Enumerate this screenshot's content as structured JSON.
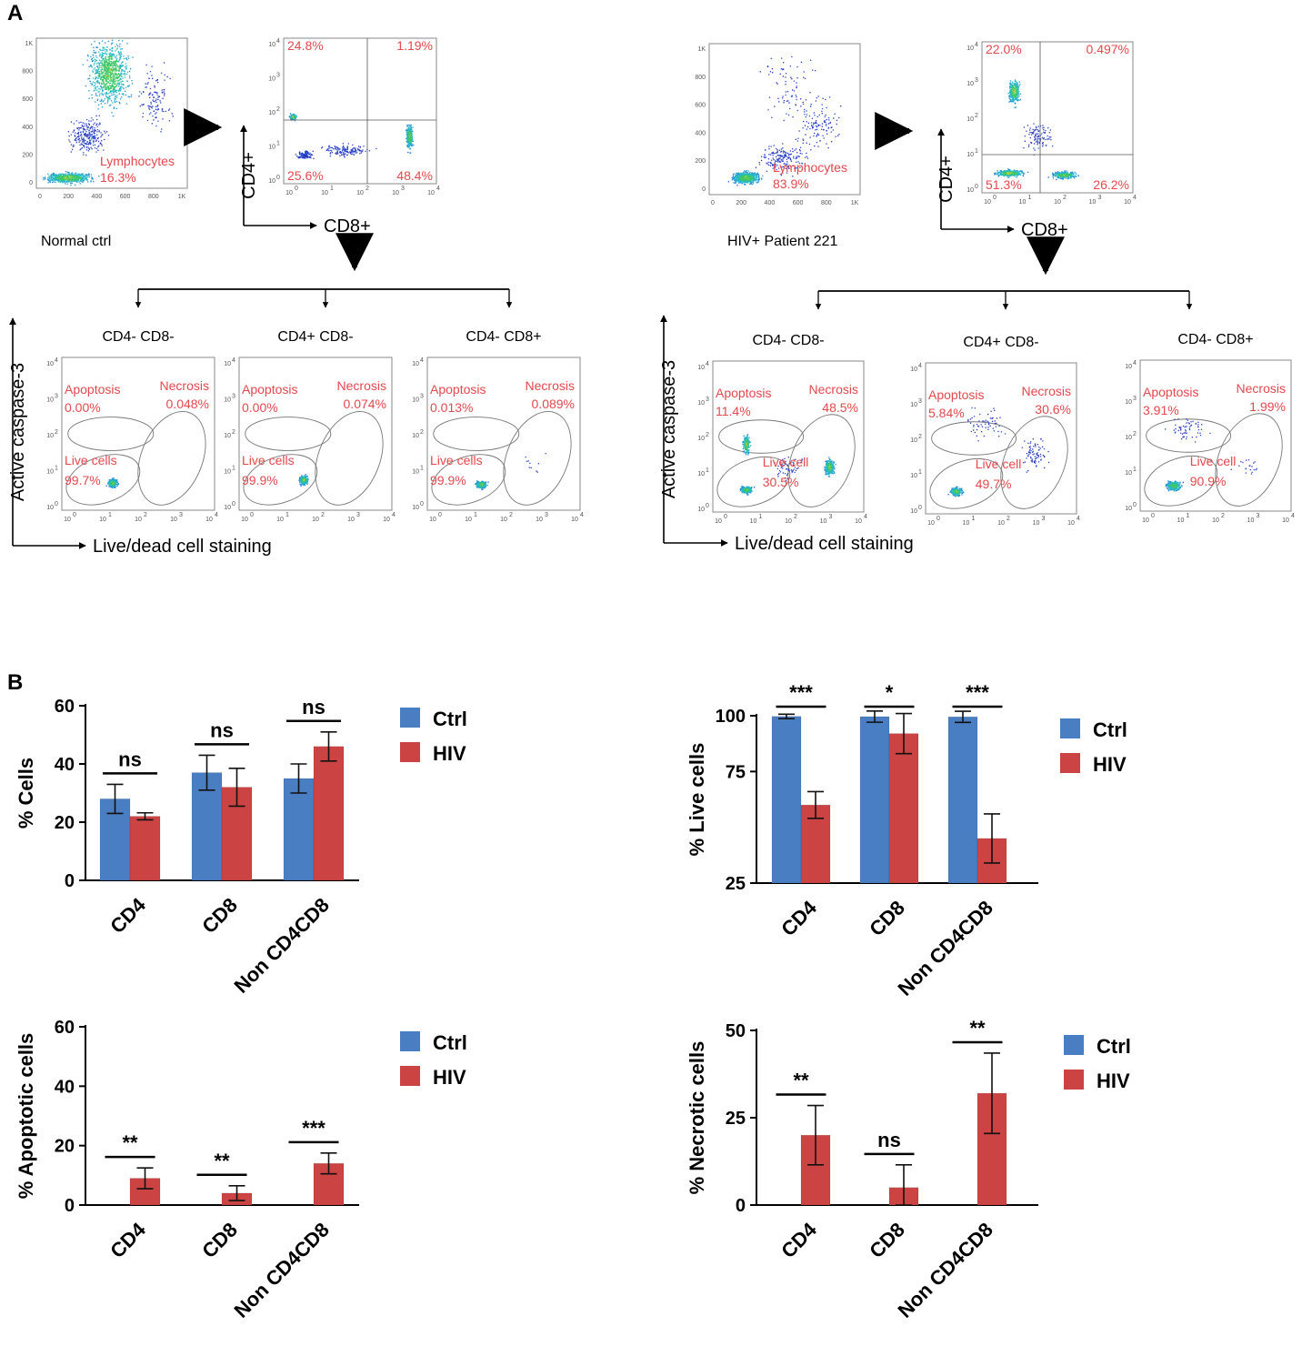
{
  "figure": {
    "panel_a_letter": "A",
    "panel_b_letter": "B",
    "colors": {
      "ctrl": "#4a7ec2",
      "hiv": "#cc4344",
      "gate_text": "#e5484d"
    }
  },
  "flow": {
    "normal": {
      "label": "Normal ctrl",
      "lymph_gate": {
        "name": "Lymphocytes",
        "pct": "16.3%"
      },
      "fsc_ticks": [
        "1K",
        "800",
        "600",
        "400",
        "200",
        "0"
      ],
      "fsc_xticks": [
        "0",
        "200",
        "400",
        "600",
        "800",
        "1K"
      ],
      "quad": {
        "q_ul": "24.8%",
        "q_ur": "1.19%",
        "q_ll": "25.6%",
        "q_lr": "48.4%"
      },
      "subsets": [
        {
          "title": "CD4- CD8-",
          "apo_label": "Apoptosis",
          "apo": "0.00%",
          "nec_label": "Necrosis",
          "nec": "0.048%",
          "live_label": "Live cells",
          "live": "99.7%"
        },
        {
          "title": "CD4+ CD8-",
          "apo_label": "Apoptosis",
          "apo": "0.00%",
          "nec_label": "Necrosis",
          "nec": "0.074%",
          "live_label": "Live cells",
          "live": "99.9%"
        },
        {
          "title": "CD4- CD8+",
          "apo_label": "Apoptosis",
          "apo": "0.013%",
          "nec_label": "Necrosis",
          "nec": "0.089%",
          "live_label": "Live cells",
          "live": "99.9%"
        }
      ]
    },
    "hiv": {
      "label": "HIV+ Patient 221",
      "lymph_gate": {
        "name": "Lymphocytes",
        "pct": "83.9%"
      },
      "fsc_ticks": [
        "1K",
        "800",
        "600",
        "400",
        "200",
        "0"
      ],
      "fsc_xticks": [
        "0",
        "200",
        "400",
        "600",
        "800",
        "1K"
      ],
      "quad": {
        "q_ul": "22.0%",
        "q_ur": "0.497%",
        "q_ll": "51.3%",
        "q_lr": "26.2%"
      },
      "subsets": [
        {
          "title": "CD4- CD8-",
          "apo_label": "Apoptosis",
          "apo": "11.4%",
          "nec_label": "Necrosis",
          "nec": "48.5%",
          "live_label": "Live cell",
          "live": "30.5%"
        },
        {
          "title": "CD4+ CD8-",
          "apo_label": "Apoptosis",
          "apo": "5.84%",
          "nec_label": "Necrosis",
          "nec": "30.6%",
          "live_label": "Live cell",
          "live": "49.7%"
        },
        {
          "title": "CD4- CD8+",
          "apo_label": "Apoptosis",
          "apo": "3.91%",
          "nec_label": "Necrosis",
          "nec": "1.99%",
          "live_label": "Live cell",
          "live": "90.9%"
        }
      ]
    },
    "axes": {
      "cd4": "CD4+",
      "cd8": "CD8+",
      "caspase": "Active caspase-3",
      "livedead": "Live/dead cell staining",
      "log_ticks": [
        "10",
        "10",
        "10",
        "10",
        "10"
      ],
      "log_exps": [
        "0",
        "1",
        "2",
        "3",
        "4"
      ]
    }
  },
  "chart_data": [
    {
      "type": "bar",
      "title": "",
      "ylabel": "% Cells",
      "xlabel": "",
      "categories": [
        "CD4",
        "CD8",
        "Non CD4CD8"
      ],
      "series": [
        {
          "name": "Ctrl",
          "values": [
            28,
            37,
            35
          ],
          "errors": [
            5,
            6,
            5
          ]
        },
        {
          "name": "HIV",
          "values": [
            22,
            32,
            46
          ],
          "errors": [
            1.2,
            6.5,
            5
          ]
        }
      ],
      "significance": [
        "ns",
        "ns",
        "ns"
      ],
      "ylim": [
        0,
        60
      ],
      "yticks": [
        0,
        20,
        40,
        60
      ],
      "legend": "top-right"
    },
    {
      "type": "bar",
      "title": "",
      "ylabel": "% Live cells",
      "xlabel": "",
      "categories": [
        "CD4",
        "CD8",
        "Non CD4CD8"
      ],
      "series": [
        {
          "name": "Ctrl",
          "values": [
            99.7,
            99.6,
            99.5
          ],
          "errors": [
            1,
            2.5,
            2.5
          ]
        },
        {
          "name": "HIV",
          "values": [
            60,
            92,
            45
          ],
          "errors": [
            6,
            9,
            11
          ]
        }
      ],
      "significance": [
        "***",
        "*",
        "***"
      ],
      "ylim": [
        25,
        100
      ],
      "yticks": [
        25,
        75,
        100
      ],
      "legend": "top-right"
    },
    {
      "type": "bar",
      "title": "",
      "ylabel": "% Apoptotic cells",
      "xlabel": "",
      "categories": [
        "CD4",
        "CD8",
        "Non CD4CD8"
      ],
      "series": [
        {
          "name": "Ctrl",
          "values": [
            0,
            0,
            0
          ],
          "errors": [
            0,
            0,
            0
          ]
        },
        {
          "name": "HIV",
          "values": [
            9,
            4,
            14
          ],
          "errors": [
            3.5,
            2.5,
            3.5
          ]
        }
      ],
      "significance": [
        "**",
        "**",
        "***"
      ],
      "ylim": [
        0,
        60
      ],
      "yticks": [
        0,
        20,
        40,
        60
      ],
      "legend": "top-right"
    },
    {
      "type": "bar",
      "title": "",
      "ylabel": "% Necrotic cells",
      "xlabel": "",
      "categories": [
        "CD4",
        "CD8",
        "Non CD4CD8"
      ],
      "series": [
        {
          "name": "Ctrl",
          "values": [
            0,
            0,
            0
          ],
          "errors": [
            0,
            0,
            0
          ]
        },
        {
          "name": "HIV",
          "values": [
            20,
            5,
            32
          ],
          "errors": [
            8.5,
            6.5,
            11.5
          ]
        }
      ],
      "significance": [
        "**",
        "ns",
        "**"
      ],
      "ylim": [
        0,
        50
      ],
      "yticks": [
        0,
        25,
        50
      ],
      "legend": "top-right"
    }
  ]
}
